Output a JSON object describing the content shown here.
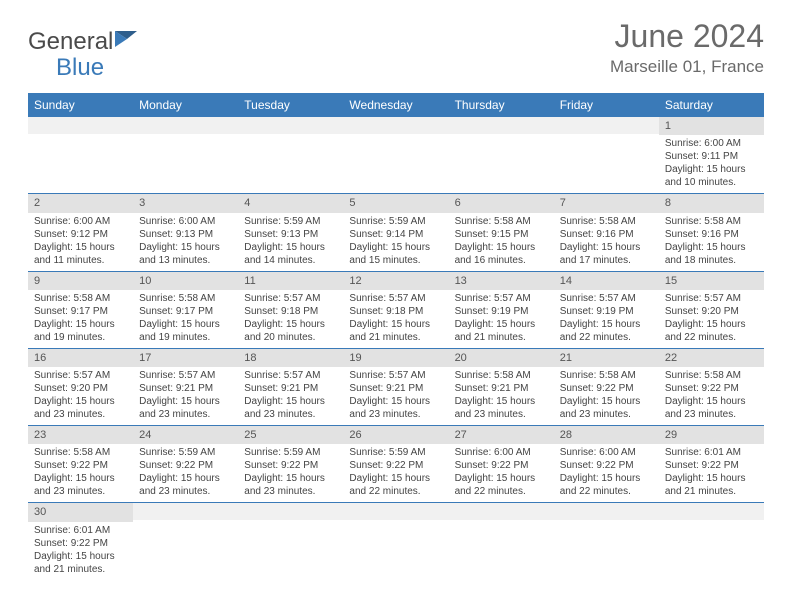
{
  "brand": {
    "part1": "General",
    "part2": "Blue"
  },
  "title": "June 2024",
  "location": "Marseille 01, France",
  "colors": {
    "header_bg": "#3a7ab8",
    "header_text": "#ffffff",
    "daynum_bg": "#e2e2e2",
    "empty_bg": "#f1f1f1",
    "row_border": "#3a7ab8",
    "body_text": "#444444",
    "title_text": "#6a6a6a"
  },
  "day_headers": [
    "Sunday",
    "Monday",
    "Tuesday",
    "Wednesday",
    "Thursday",
    "Friday",
    "Saturday"
  ],
  "weeks": [
    [
      {
        "empty": true
      },
      {
        "empty": true
      },
      {
        "empty": true
      },
      {
        "empty": true
      },
      {
        "empty": true
      },
      {
        "empty": true
      },
      {
        "n": "1",
        "sunrise": "6:00 AM",
        "sunset": "9:11 PM",
        "dl1": "Daylight: 15 hours",
        "dl2": "and 10 minutes."
      }
    ],
    [
      {
        "n": "2",
        "sunrise": "6:00 AM",
        "sunset": "9:12 PM",
        "dl1": "Daylight: 15 hours",
        "dl2": "and 11 minutes."
      },
      {
        "n": "3",
        "sunrise": "6:00 AM",
        "sunset": "9:13 PM",
        "dl1": "Daylight: 15 hours",
        "dl2": "and 13 minutes."
      },
      {
        "n": "4",
        "sunrise": "5:59 AM",
        "sunset": "9:13 PM",
        "dl1": "Daylight: 15 hours",
        "dl2": "and 14 minutes."
      },
      {
        "n": "5",
        "sunrise": "5:59 AM",
        "sunset": "9:14 PM",
        "dl1": "Daylight: 15 hours",
        "dl2": "and 15 minutes."
      },
      {
        "n": "6",
        "sunrise": "5:58 AM",
        "sunset": "9:15 PM",
        "dl1": "Daylight: 15 hours",
        "dl2": "and 16 minutes."
      },
      {
        "n": "7",
        "sunrise": "5:58 AM",
        "sunset": "9:16 PM",
        "dl1": "Daylight: 15 hours",
        "dl2": "and 17 minutes."
      },
      {
        "n": "8",
        "sunrise": "5:58 AM",
        "sunset": "9:16 PM",
        "dl1": "Daylight: 15 hours",
        "dl2": "and 18 minutes."
      }
    ],
    [
      {
        "n": "9",
        "sunrise": "5:58 AM",
        "sunset": "9:17 PM",
        "dl1": "Daylight: 15 hours",
        "dl2": "and 19 minutes."
      },
      {
        "n": "10",
        "sunrise": "5:58 AM",
        "sunset": "9:17 PM",
        "dl1": "Daylight: 15 hours",
        "dl2": "and 19 minutes."
      },
      {
        "n": "11",
        "sunrise": "5:57 AM",
        "sunset": "9:18 PM",
        "dl1": "Daylight: 15 hours",
        "dl2": "and 20 minutes."
      },
      {
        "n": "12",
        "sunrise": "5:57 AM",
        "sunset": "9:18 PM",
        "dl1": "Daylight: 15 hours",
        "dl2": "and 21 minutes."
      },
      {
        "n": "13",
        "sunrise": "5:57 AM",
        "sunset": "9:19 PM",
        "dl1": "Daylight: 15 hours",
        "dl2": "and 21 minutes."
      },
      {
        "n": "14",
        "sunrise": "5:57 AM",
        "sunset": "9:19 PM",
        "dl1": "Daylight: 15 hours",
        "dl2": "and 22 minutes."
      },
      {
        "n": "15",
        "sunrise": "5:57 AM",
        "sunset": "9:20 PM",
        "dl1": "Daylight: 15 hours",
        "dl2": "and 22 minutes."
      }
    ],
    [
      {
        "n": "16",
        "sunrise": "5:57 AM",
        "sunset": "9:20 PM",
        "dl1": "Daylight: 15 hours",
        "dl2": "and 23 minutes."
      },
      {
        "n": "17",
        "sunrise": "5:57 AM",
        "sunset": "9:21 PM",
        "dl1": "Daylight: 15 hours",
        "dl2": "and 23 minutes."
      },
      {
        "n": "18",
        "sunrise": "5:57 AM",
        "sunset": "9:21 PM",
        "dl1": "Daylight: 15 hours",
        "dl2": "and 23 minutes."
      },
      {
        "n": "19",
        "sunrise": "5:57 AM",
        "sunset": "9:21 PM",
        "dl1": "Daylight: 15 hours",
        "dl2": "and 23 minutes."
      },
      {
        "n": "20",
        "sunrise": "5:58 AM",
        "sunset": "9:21 PM",
        "dl1": "Daylight: 15 hours",
        "dl2": "and 23 minutes."
      },
      {
        "n": "21",
        "sunrise": "5:58 AM",
        "sunset": "9:22 PM",
        "dl1": "Daylight: 15 hours",
        "dl2": "and 23 minutes."
      },
      {
        "n": "22",
        "sunrise": "5:58 AM",
        "sunset": "9:22 PM",
        "dl1": "Daylight: 15 hours",
        "dl2": "and 23 minutes."
      }
    ],
    [
      {
        "n": "23",
        "sunrise": "5:58 AM",
        "sunset": "9:22 PM",
        "dl1": "Daylight: 15 hours",
        "dl2": "and 23 minutes."
      },
      {
        "n": "24",
        "sunrise": "5:59 AM",
        "sunset": "9:22 PM",
        "dl1": "Daylight: 15 hours",
        "dl2": "and 23 minutes."
      },
      {
        "n": "25",
        "sunrise": "5:59 AM",
        "sunset": "9:22 PM",
        "dl1": "Daylight: 15 hours",
        "dl2": "and 23 minutes."
      },
      {
        "n": "26",
        "sunrise": "5:59 AM",
        "sunset": "9:22 PM",
        "dl1": "Daylight: 15 hours",
        "dl2": "and 22 minutes."
      },
      {
        "n": "27",
        "sunrise": "6:00 AM",
        "sunset": "9:22 PM",
        "dl1": "Daylight: 15 hours",
        "dl2": "and 22 minutes."
      },
      {
        "n": "28",
        "sunrise": "6:00 AM",
        "sunset": "9:22 PM",
        "dl1": "Daylight: 15 hours",
        "dl2": "and 22 minutes."
      },
      {
        "n": "29",
        "sunrise": "6:01 AM",
        "sunset": "9:22 PM",
        "dl1": "Daylight: 15 hours",
        "dl2": "and 21 minutes."
      }
    ],
    [
      {
        "n": "30",
        "sunrise": "6:01 AM",
        "sunset": "9:22 PM",
        "dl1": "Daylight: 15 hours",
        "dl2": "and 21 minutes."
      },
      {
        "empty": true
      },
      {
        "empty": true
      },
      {
        "empty": true
      },
      {
        "empty": true
      },
      {
        "empty": true
      },
      {
        "empty": true
      }
    ]
  ],
  "labels": {
    "sunrise_prefix": "Sunrise: ",
    "sunset_prefix": "Sunset: "
  }
}
